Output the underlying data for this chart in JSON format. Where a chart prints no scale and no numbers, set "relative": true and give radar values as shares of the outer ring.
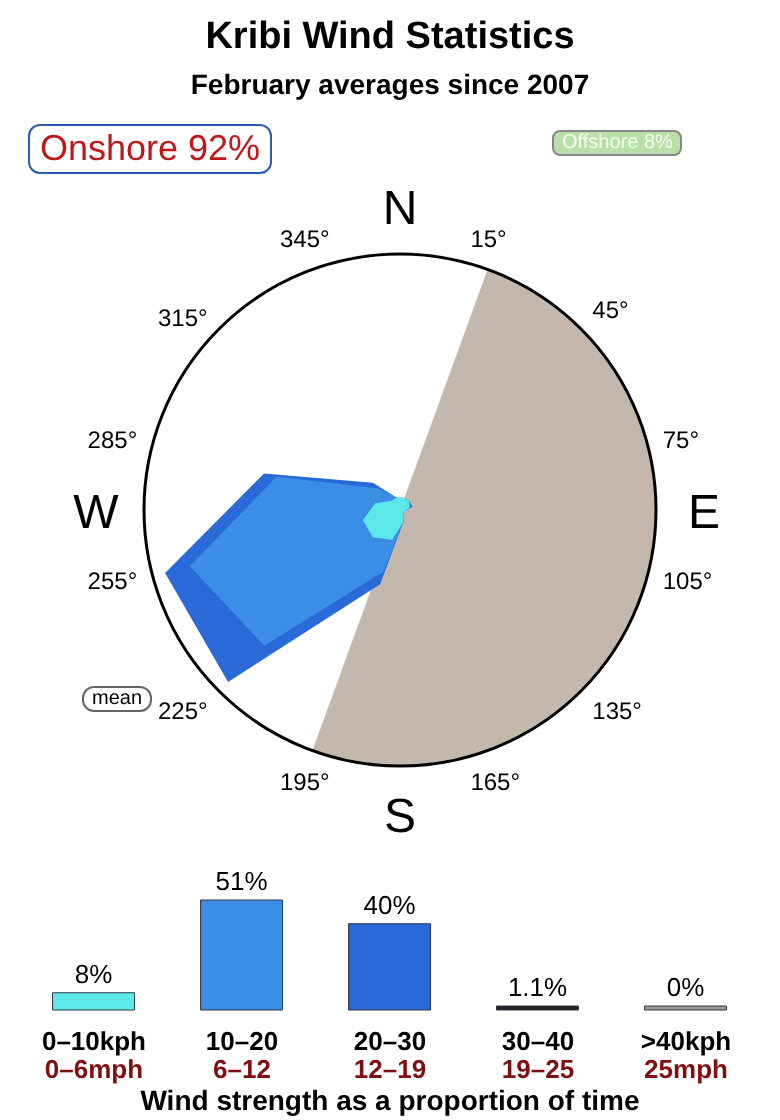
{
  "chart_data": [
    {
      "type": "radar",
      "title": "Kribi Wind Statistics",
      "subtitle": "February averages since 2007",
      "relative": true,
      "legend": false,
      "categories": [
        "15°",
        "45°",
        "75°",
        "105°",
        "135°",
        "165°",
        "195°",
        "225°",
        "255°",
        "285°",
        "315°",
        "345°"
      ],
      "series": [
        {
          "color": "#2a6ad8",
          "values": [
            0.05,
            0.05,
            0.05,
            0.02,
            0.02,
            0.05,
            0.3,
            0.95,
            0.95,
            0.55,
            0.15,
            0.05
          ]
        },
        {
          "color": "#3a8ee6",
          "values": [
            0.05,
            0.05,
            0.04,
            0.02,
            0.02,
            0.05,
            0.25,
            0.75,
            0.85,
            0.5,
            0.12,
            0.05
          ]
        },
        {
          "color": "#5ce8e8",
          "values": [
            0.05,
            0.05,
            0.04,
            0.02,
            0.02,
            0.05,
            0.12,
            0.15,
            0.15,
            0.1,
            0.05,
            0.05
          ]
        }
      ],
      "annotations": [
        "N",
        "E",
        "S",
        "W",
        "Onshore 92%",
        "Offshore 8%",
        "mean"
      ]
    },
    {
      "type": "bar",
      "xlabel": "Wind strength as a proportion of time",
      "tick_labels": "x",
      "categories": [
        "0–10kph\n0–6mph",
        "10–20\n6–12",
        "20–30\n12–19",
        "30–40\n19–25",
        ">40kph\n25mph"
      ],
      "values": [
        8,
        51,
        40,
        1.1,
        0
      ],
      "colors": [
        "#5ce8e8",
        "#3a8ee6",
        "#2a6ad8",
        "#222222",
        "#999999"
      ],
      "value_labels": [
        "8%",
        "51%",
        "40%",
        "1.1%",
        "0%"
      ]
    }
  ]
}
